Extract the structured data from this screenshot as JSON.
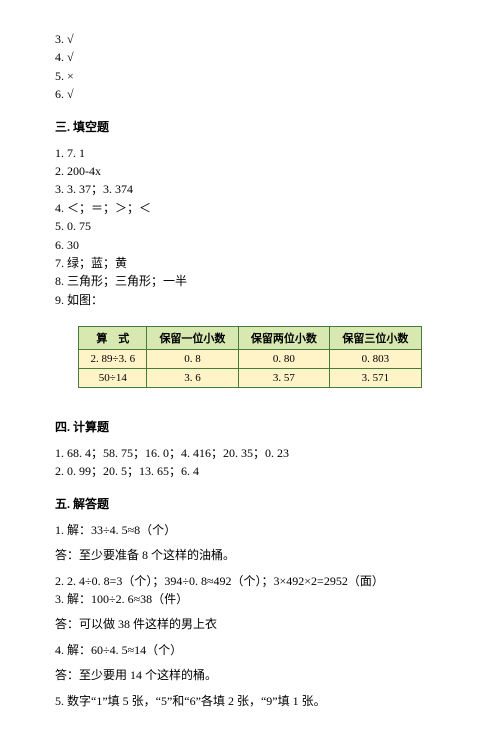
{
  "section_a_pre_items": [
    {
      "n": "3.",
      "mark": "√"
    },
    {
      "n": "4.",
      "mark": "√"
    },
    {
      "n": "5.",
      "mark": "×"
    },
    {
      "n": "6.",
      "mark": "√"
    }
  ],
  "section3": {
    "heading": "三. 填空题",
    "items": [
      "1. 7. 1",
      "2. 200-4x",
      "3. 3. 37；3. 374",
      "4. ＜；＝；＞；＜",
      "5. 0. 75",
      "6. 30",
      "7. 绿；蓝；黄",
      "8. 三角形；三角形；一半",
      "9. 如图："
    ]
  },
  "table": {
    "border_color": "#4a7a3a",
    "header_bg": "#d7e9b0",
    "row_bg": "#fff3c8",
    "columns": [
      "算　式",
      "保留一位小数",
      "保留两位小数",
      "保留三位小数"
    ],
    "rows": [
      [
        "2. 89÷3. 6",
        "0. 8",
        "0. 80",
        "0. 803"
      ],
      [
        "50÷14",
        "3. 6",
        "3. 57",
        "3. 571"
      ]
    ]
  },
  "section4": {
    "heading": "四. 计算题",
    "items": [
      "1. 68. 4；58. 75；16. 0；4. 416；20. 35；0. 23",
      "2. 0. 99；20. 5；13. 65；6. 4"
    ]
  },
  "section5": {
    "heading": "五. 解答题",
    "blocks": [
      {
        "lines": [
          "1. 解：33÷4. 5≈8（个）"
        ],
        "answer": "答：至少要准备 8 个这样的油桶。"
      },
      {
        "lines": [
          "2. 2. 4÷0. 8=3（个）；394÷0. 8≈492（个）；3×492×2=2952（面）",
          "3. 解：100÷2. 6≈38（件）"
        ],
        "answer": "答：可以做 38 件这样的男上衣"
      },
      {
        "lines": [
          "4. 解：60÷4. 5≈14（个）"
        ],
        "answer": "答：至少要用 14 个这样的桶。"
      },
      {
        "lines": [
          "5. 数字“1”填 5 张，“5”和“6”各填 2 张，“9”填 1 张。"
        ],
        "answer": null
      }
    ]
  }
}
